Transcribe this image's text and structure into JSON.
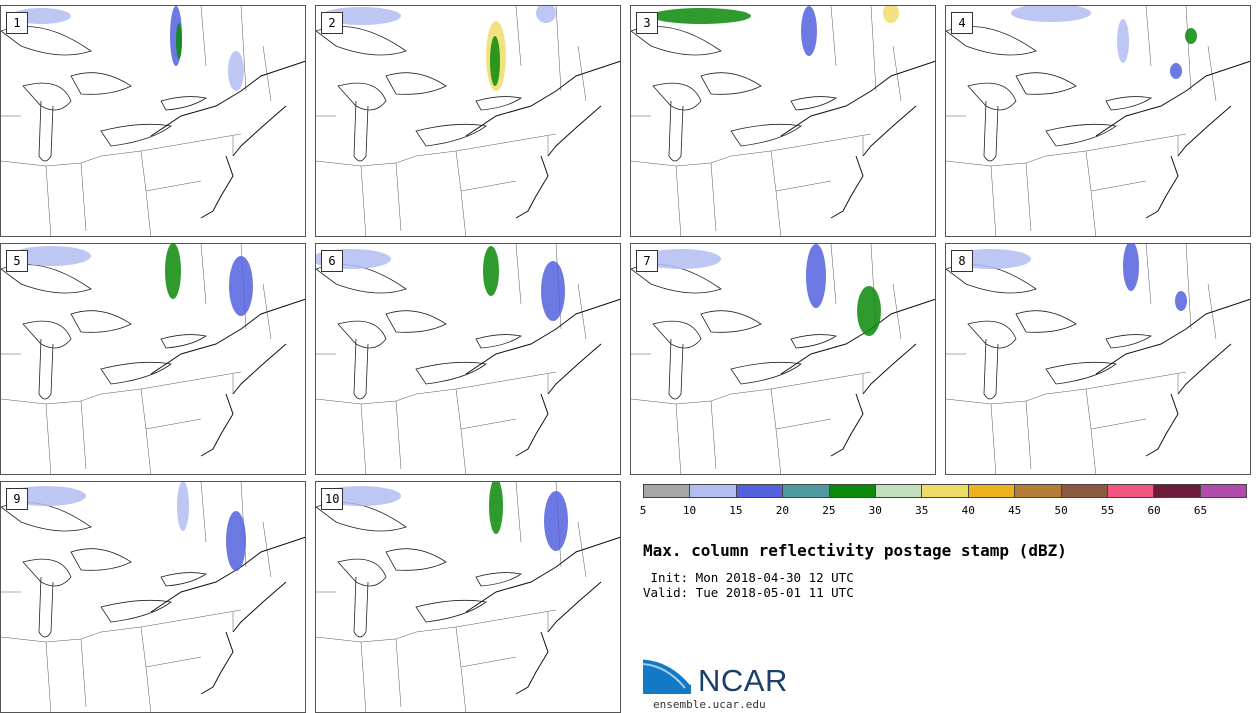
{
  "panels": [
    {
      "label": "1"
    },
    {
      "label": "2"
    },
    {
      "label": "3"
    },
    {
      "label": "4"
    },
    {
      "label": "5"
    },
    {
      "label": "6"
    },
    {
      "label": "7"
    },
    {
      "label": "8"
    },
    {
      "label": "9"
    },
    {
      "label": "10"
    }
  ],
  "colorbar": {
    "colors": [
      "#a6a6a6",
      "#b3bdf2",
      "#5461dd",
      "#4f9aa0",
      "#0b8a0b",
      "#c2dfbd",
      "#eedc6a",
      "#eeb21f",
      "#b57d35",
      "#8a5a3f",
      "#f0557f",
      "#6d1a3a",
      "#b04aab"
    ],
    "ticks": [
      "5",
      "10",
      "15",
      "20",
      "25",
      "30",
      "35",
      "40",
      "45",
      "50",
      "55",
      "60",
      "65"
    ]
  },
  "title": "Max. column reflectivity postage stamp (dBZ)",
  "init_line": " Init: Mon 2018-04-30 12 UTC",
  "valid_line": "Valid: Tue 2018-05-01 11 UTC",
  "logo": {
    "text": "NCAR",
    "site": "ensemble.ucar.edu"
  }
}
